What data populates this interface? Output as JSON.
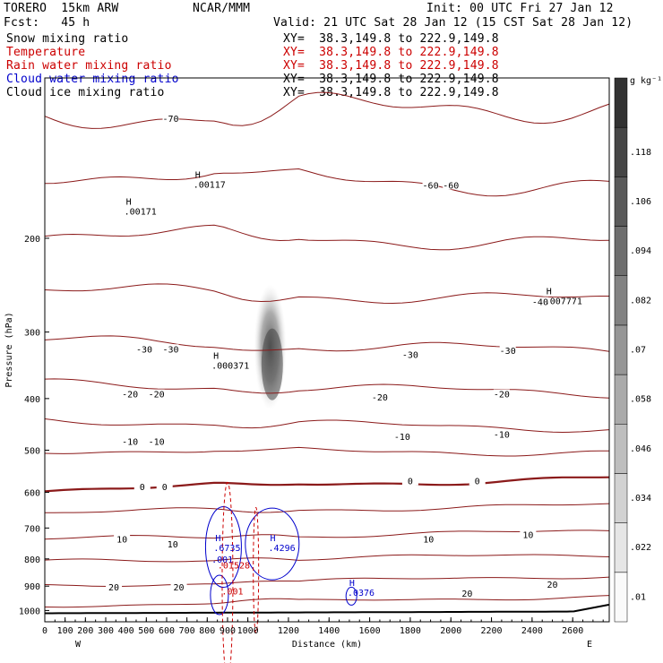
{
  "header": {
    "model": "TORERO  15km ARW",
    "org": "NCAR/MMM",
    "init": "Init: 00 UTC Fri 27 Jan 12",
    "fcst": "Fcst:   45 h",
    "valid": "Valid: 21 UTC Sat 28 Jan 12 (15 CST Sat 28 Jan 12)"
  },
  "fields": [
    {
      "name": "Snow mixing ratio",
      "xy": "XY=  38.3,149.8 to 222.9,149.8",
      "color": "#000000",
      "xycolor": "#000000"
    },
    {
      "name": "Temperature",
      "xy": "XY=  38.3,149.8 to 222.9,149.8",
      "color": "#cc0000",
      "xycolor": "#cc0000"
    },
    {
      "name": "Rain water mixing ratio",
      "xy": "XY=  38.3,149.8 to 222.9,149.8",
      "color": "#cc0000",
      "xycolor": "#cc0000"
    },
    {
      "name": "Cloud water mixing ratio",
      "xy": "XY=  38.3,149.8 to 222.9,149.8",
      "color": "#0000cc",
      "xycolor": "#000000"
    },
    {
      "name": "Cloud ice mixing ratio",
      "xy": "XY=  38.3,149.8 to 222.9,149.8",
      "color": "#000000",
      "xycolor": "#000000"
    }
  ],
  "chart_data": {
    "type": "cross-section contour",
    "xlabel": "Distance (km)",
    "ylabel": "Pressure (hPa)",
    "xlim": [
      0,
      2780
    ],
    "x_ticks": [
      0,
      100,
      200,
      300,
      400,
      500,
      600,
      700,
      800,
      900,
      1000,
      1200,
      1400,
      1600,
      1800,
      2000,
      2200,
      2400,
      2600
    ],
    "ylim": [
      1050,
      100
    ],
    "y_ticks": [
      200,
      300,
      400,
      500,
      600,
      700,
      800,
      900,
      1000
    ],
    "west_label": "W",
    "east_label": "E",
    "colorbar": {
      "unit": "g kg⁻¹",
      "ticks": [
        ".01",
        ".022",
        ".034",
        ".046",
        ".058",
        ".07",
        ".082",
        ".094",
        ".106",
        ".118"
      ]
    },
    "temperature_contours": [
      {
        "value": "-70",
        "x": 620,
        "p": 120
      },
      {
        "value": "-60",
        "x": 1900,
        "p": 160
      },
      {
        "value": "-60",
        "x": 2000,
        "p": 160
      },
      {
        "value": "-40",
        "x": 2440,
        "p": 265
      },
      {
        "value": "-30",
        "x": 490,
        "p": 325
      },
      {
        "value": "-30",
        "x": 620,
        "p": 325
      },
      {
        "value": "-30",
        "x": 1800,
        "p": 333
      },
      {
        "value": "-30",
        "x": 2280,
        "p": 327
      },
      {
        "value": "-20",
        "x": 420,
        "p": 395
      },
      {
        "value": "-20",
        "x": 550,
        "p": 395
      },
      {
        "value": "-20",
        "x": 1650,
        "p": 400
      },
      {
        "value": "-20",
        "x": 2250,
        "p": 395
      },
      {
        "value": "-10",
        "x": 420,
        "p": 485
      },
      {
        "value": "-10",
        "x": 550,
        "p": 485
      },
      {
        "value": "-10",
        "x": 1760,
        "p": 475
      },
      {
        "value": "-10",
        "x": 2250,
        "p": 470
      },
      {
        "value": "0",
        "x": 480,
        "p": 590
      },
      {
        "value": "0",
        "x": 590,
        "p": 590
      },
      {
        "value": "0",
        "x": 1800,
        "p": 575
      },
      {
        "value": "0",
        "x": 2130,
        "p": 575
      },
      {
        "value": "10",
        "x": 380,
        "p": 740
      },
      {
        "value": "10",
        "x": 630,
        "p": 755
      },
      {
        "value": "10",
        "x": 1890,
        "p": 740
      },
      {
        "value": "10",
        "x": 2380,
        "p": 725
      },
      {
        "value": "20",
        "x": 340,
        "p": 910
      },
      {
        "value": "20",
        "x": 660,
        "p": 910
      },
      {
        "value": "20",
        "x": 2080,
        "p": 935
      },
      {
        "value": "20",
        "x": 2500,
        "p": 900
      }
    ],
    "extrema_labels": [
      {
        "label": "H",
        "value": ".00171",
        "x": 400,
        "p": 180,
        "color": "#000000"
      },
      {
        "label": "H",
        "value": ".00117",
        "x": 740,
        "p": 160,
        "color": "#000000"
      },
      {
        "label": "H",
        "value": ".000371",
        "x": 830,
        "p": 350,
        "color": "#000000"
      },
      {
        "label": "H",
        "value": ".007771",
        "x": 2470,
        "p": 265,
        "color": "#000000"
      },
      {
        "label": "H",
        "value": ".6735",
        "x": 840,
        "p": 770,
        "color": "#0000cc"
      },
      {
        "label": "H",
        "value": ".4296",
        "x": 1110,
        "p": 770,
        "color": "#0000cc"
      },
      {
        "label": "",
        "value": ".001",
        "x": 830,
        "p": 810,
        "color": "#0000cc"
      },
      {
        "label": "",
        "value": ".01528",
        "x": 860,
        "p": 830,
        "color": "#cc0000"
      },
      {
        "label": "",
        "value": ".001",
        "x": 880,
        "p": 930,
        "color": "#cc0000"
      },
      {
        "label": "H",
        "value": ".0376",
        "x": 1500,
        "p": 935,
        "color": "#0000cc"
      }
    ]
  }
}
